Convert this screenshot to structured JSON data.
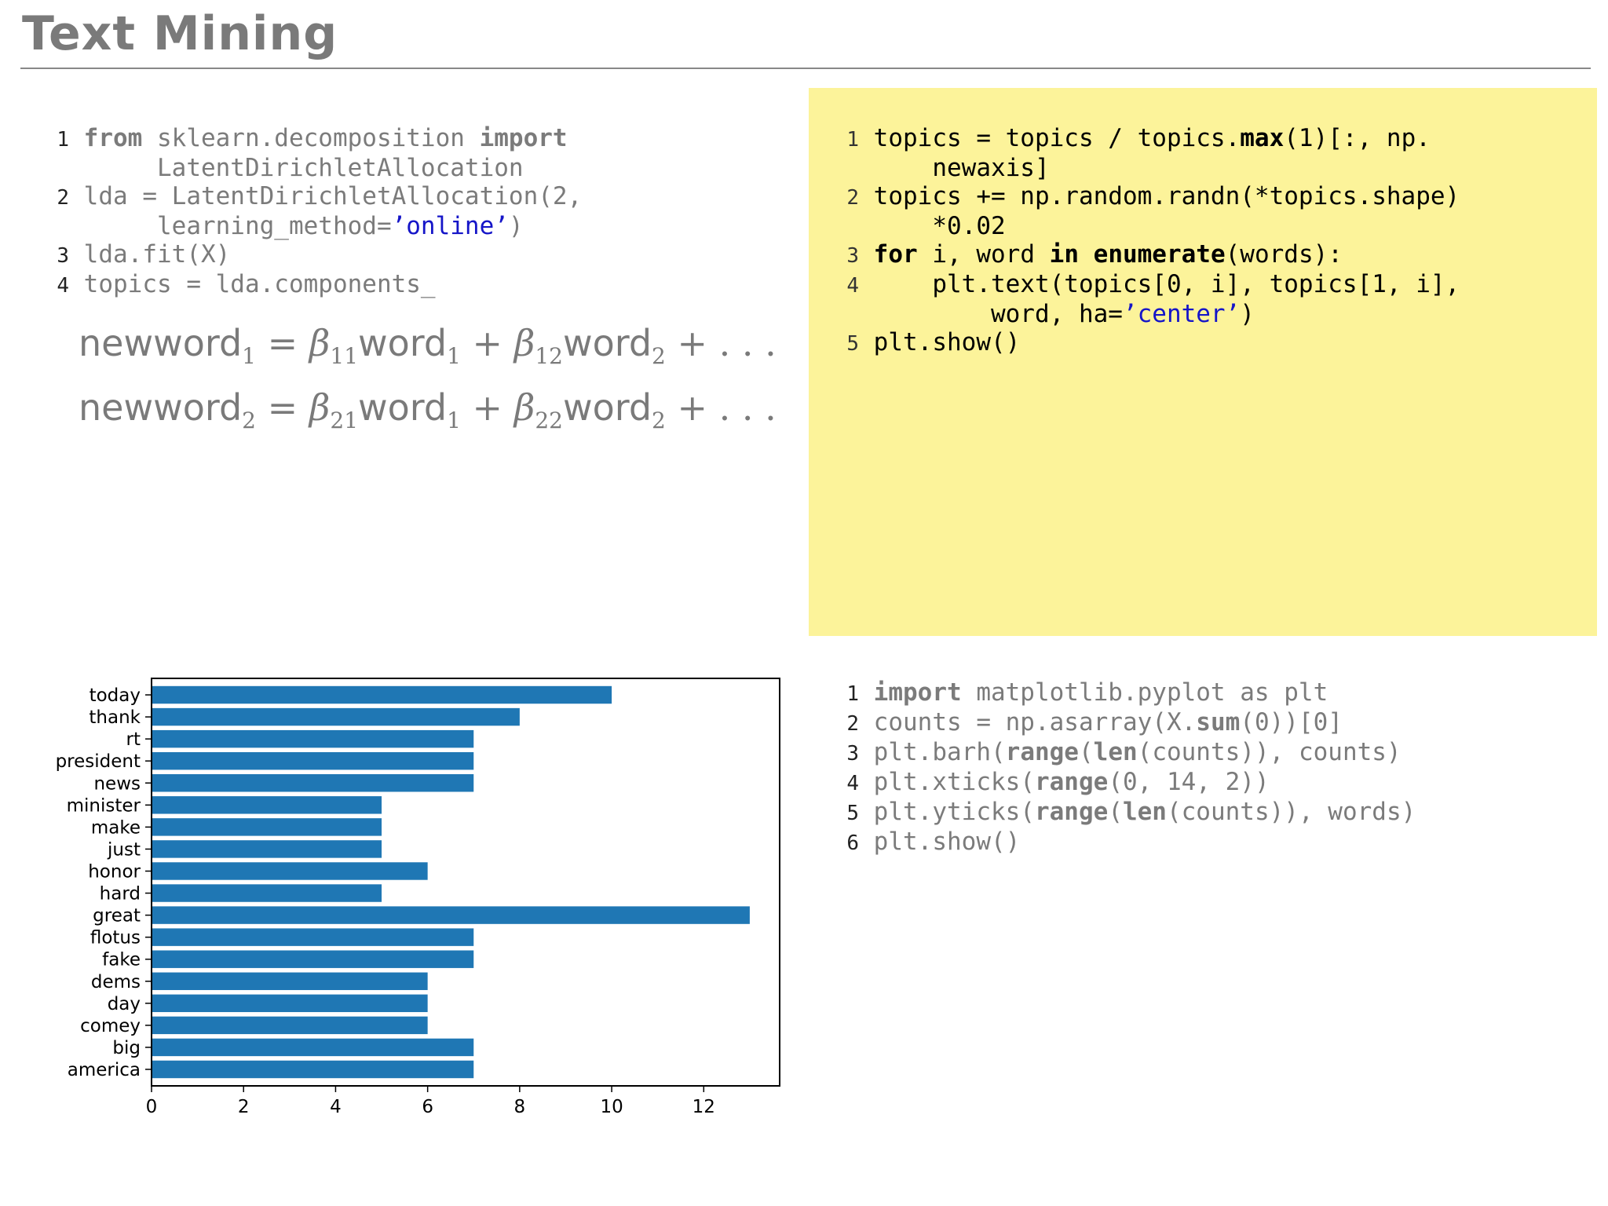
{
  "title": "Text Mining",
  "code_left_top": [
    {
      "n": "1",
      "parts": [
        {
          "t": "from",
          "k": 1
        },
        {
          "t": " sklearn.decomposition "
        },
        {
          "t": "import",
          "k": 1
        }
      ]
    },
    {
      "n": "",
      "parts": [
        {
          "t": "     LatentDirichletAllocation"
        }
      ]
    },
    {
      "n": "2",
      "parts": [
        {
          "t": "lda = LatentDirichletAllocation(2,"
        }
      ]
    },
    {
      "n": "",
      "parts": [
        {
          "t": "     learning_method="
        },
        {
          "t": "’online’",
          "s": 1
        },
        {
          "t": ")"
        }
      ]
    },
    {
      "n": "3",
      "parts": [
        {
          "t": "lda.fit(X)"
        }
      ]
    },
    {
      "n": "4",
      "parts": [
        {
          "t": "topics = lda.components_"
        }
      ]
    }
  ],
  "equations": [
    {
      "lhs": "newword",
      "lhs_sub": "1",
      "b1": "11",
      "w1": "word",
      "w1_sub": "1",
      "b2": "12",
      "w2": "word",
      "w2_sub": "2"
    },
    {
      "lhs": "newword",
      "lhs_sub": "2",
      "b1": "21",
      "w1": "word",
      "w1_sub": "1",
      "b2": "22",
      "w2": "word",
      "w2_sub": "2"
    }
  ],
  "code_right_top": [
    {
      "n": "1",
      "parts": [
        {
          "t": "topics = topics / topics."
        },
        {
          "t": "max",
          "k": 1
        },
        {
          "t": "(1)[:, np."
        }
      ]
    },
    {
      "n": "",
      "parts": [
        {
          "t": "    newaxis]"
        }
      ]
    },
    {
      "n": "2",
      "parts": [
        {
          "t": "topics += np.random.randn(*topics.shape)"
        }
      ]
    },
    {
      "n": "",
      "parts": [
        {
          "t": "    *0.02"
        }
      ]
    },
    {
      "n": "3",
      "parts": [
        {
          "t": "for",
          "k": 1
        },
        {
          "t": " i, word "
        },
        {
          "t": "in",
          "k": 1
        },
        {
          "t": " "
        },
        {
          "t": "enumerate",
          "k": 1
        },
        {
          "t": "(words):"
        }
      ]
    },
    {
      "n": "4",
      "parts": [
        {
          "t": "    plt.text(topics[0, i], topics[1, i],"
        }
      ]
    },
    {
      "n": "",
      "parts": [
        {
          "t": "        word, ha="
        },
        {
          "t": "’center’",
          "s": 1
        },
        {
          "t": ")"
        }
      ]
    },
    {
      "n": "5",
      "parts": [
        {
          "t": "plt.show()"
        }
      ]
    }
  ],
  "code_right_bottom": [
    {
      "n": "1",
      "parts": [
        {
          "t": "import",
          "k": 1
        },
        {
          "t": " matplotlib.pyplot as plt"
        }
      ]
    },
    {
      "n": "2",
      "parts": [
        {
          "t": "counts = np.asarray(X."
        },
        {
          "t": "sum",
          "k": 1
        },
        {
          "t": "(0))[0]"
        }
      ]
    },
    {
      "n": "3",
      "parts": [
        {
          "t": "plt.barh("
        },
        {
          "t": "range",
          "k": 1
        },
        {
          "t": "("
        },
        {
          "t": "len",
          "k": 1
        },
        {
          "t": "(counts)), counts)"
        }
      ]
    },
    {
      "n": "4",
      "parts": [
        {
          "t": "plt.xticks("
        },
        {
          "t": "range",
          "k": 1
        },
        {
          "t": "(0, 14, 2))"
        }
      ]
    },
    {
      "n": "5",
      "parts": [
        {
          "t": "plt.yticks("
        },
        {
          "t": "range",
          "k": 1
        },
        {
          "t": "("
        },
        {
          "t": "len",
          "k": 1
        },
        {
          "t": "(counts)), words)"
        }
      ]
    },
    {
      "n": "6",
      "parts": [
        {
          "t": "plt.show()"
        }
      ]
    }
  ],
  "chart_data": {
    "type": "bar",
    "orientation": "horizontal",
    "categories": [
      "today",
      "thank",
      "rt",
      "president",
      "news",
      "minister",
      "make",
      "just",
      "honor",
      "hard",
      "great",
      "flotus",
      "fake",
      "dems",
      "day",
      "comey",
      "big",
      "america"
    ],
    "values": [
      10,
      8,
      7,
      7,
      7,
      5,
      5,
      5,
      6,
      5,
      13,
      7,
      7,
      6,
      6,
      6,
      7,
      7
    ],
    "xticks": [
      0,
      2,
      4,
      6,
      8,
      10,
      12
    ],
    "xlim": [
      0,
      13.65
    ],
    "color": "#1f77b4",
    "title": "",
    "xlabel": "",
    "ylabel": ""
  }
}
